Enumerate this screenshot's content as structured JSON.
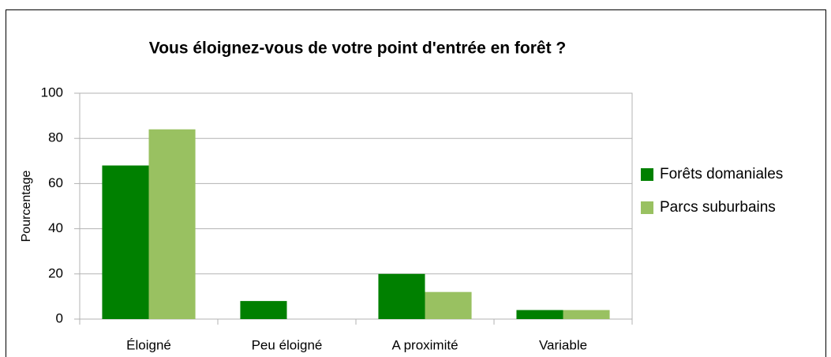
{
  "chart_data": {
    "type": "bar",
    "title": "Vous éloignez-vous de votre point d'entrée en forêt ?",
    "y_label": "Pourcentage",
    "categories": [
      "Éloigné",
      "Peu éloigné",
      "A proximité",
      "Variable"
    ],
    "series": [
      {
        "name": "Forêts domaniales",
        "color": "#008000",
        "values": [
          68,
          8,
          20,
          4
        ]
      },
      {
        "name": "Parcs suburbains",
        "color": "#99c161",
        "values": [
          84,
          0,
          12,
          4
        ]
      }
    ],
    "ylim": [
      0,
      100
    ],
    "yticks": [
      0,
      20,
      40,
      60,
      80,
      100
    ],
    "grid": true,
    "legend": "right"
  }
}
